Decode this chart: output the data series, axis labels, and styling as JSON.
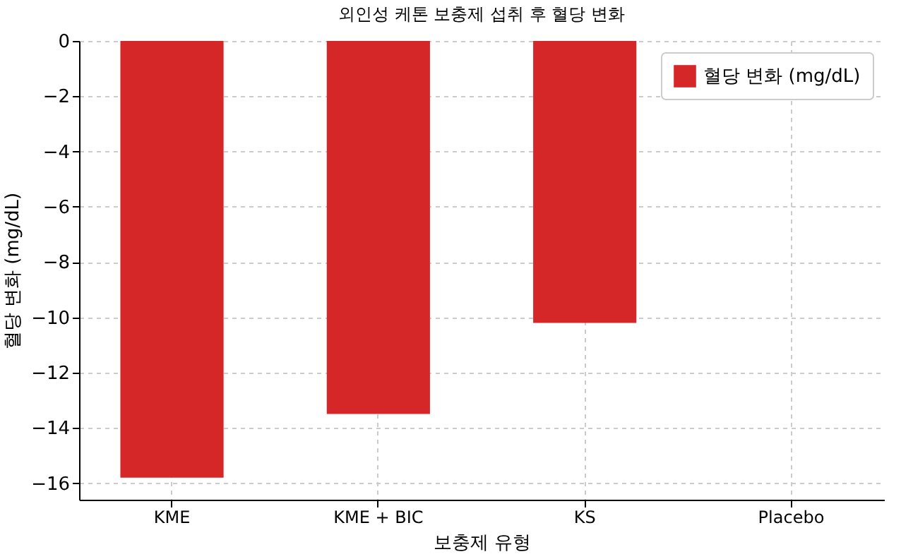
{
  "chart_data": {
    "type": "bar",
    "title": "외인성 케톤 보충제 섭취 후 혈당 변화",
    "xlabel": "보충제 유형",
    "ylabel": "혈당 변화 (mg/dL)",
    "categories": [
      "KME",
      "KME + BIC",
      "KS",
      "Placebo"
    ],
    "series": [
      {
        "name": "혈당 변화 (mg/dL)",
        "color": "#d62728",
        "values": [
          -15.8,
          -13.5,
          -10.2,
          0
        ]
      }
    ],
    "ylim": [
      -16.6,
      0
    ],
    "yticks": [
      {
        "value": 0,
        "label": "0"
      },
      {
        "value": -2,
        "label": "−2"
      },
      {
        "value": -4,
        "label": "−4"
      },
      {
        "value": -6,
        "label": "−6"
      },
      {
        "value": -8,
        "label": "−8"
      },
      {
        "value": -10,
        "label": "−10"
      },
      {
        "value": -12,
        "label": "−12"
      },
      {
        "value": -14,
        "label": "−14"
      },
      {
        "value": -16,
        "label": "−16"
      }
    ],
    "grid": true,
    "legend": "top right"
  }
}
